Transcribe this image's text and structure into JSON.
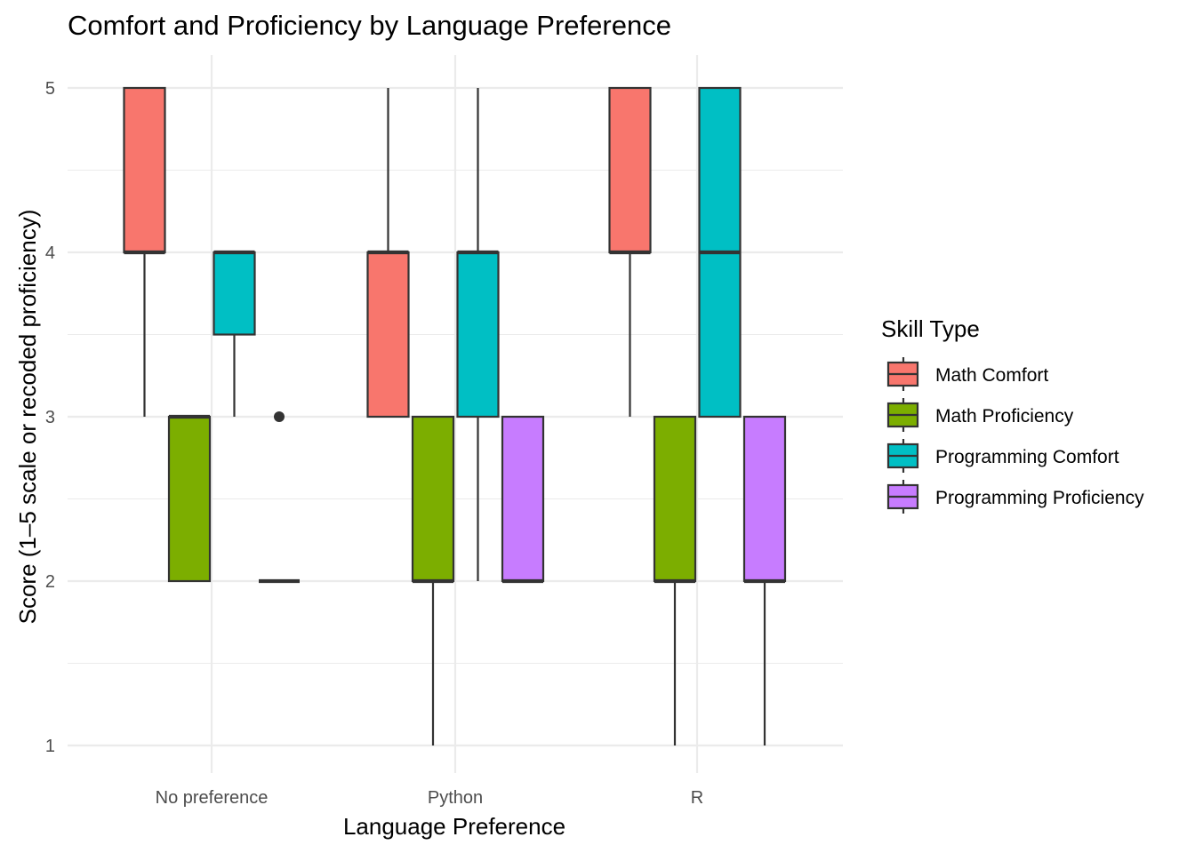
{
  "chart_data": {
    "type": "boxplot",
    "title": "Comfort and Proficiency by Language Preference",
    "xlabel": "Language Preference",
    "ylabel": "Score (1–5 scale or recoded proficiency)",
    "ylim": [
      1,
      5
    ],
    "yticks": [
      "1",
      "2",
      "3",
      "4",
      "5"
    ],
    "categories": [
      "No preference",
      "Python",
      "R"
    ],
    "legend": {
      "title": "Skill Type",
      "position": "right"
    },
    "series": [
      {
        "name": "Math Comfort",
        "color": "#F8766D",
        "boxes": [
          {
            "min": 3,
            "q1": 4,
            "median": 4,
            "q3": 5,
            "max": 5,
            "outliers": []
          },
          {
            "min": 3,
            "q1": 3,
            "median": 4,
            "q3": 4,
            "max": 5,
            "outliers": []
          },
          {
            "min": 3,
            "q1": 4,
            "median": 4,
            "q3": 5,
            "max": 5,
            "outliers": []
          }
        ]
      },
      {
        "name": "Math Proficiency",
        "color": "#7CAE00",
        "boxes": [
          {
            "min": 2,
            "q1": 2,
            "median": 3,
            "q3": 3,
            "max": 3,
            "outliers": []
          },
          {
            "min": 1,
            "q1": 2,
            "median": 2,
            "q3": 3,
            "max": 3,
            "outliers": []
          },
          {
            "min": 1,
            "q1": 2,
            "median": 2,
            "q3": 3,
            "max": 3,
            "outliers": []
          }
        ]
      },
      {
        "name": "Programming Comfort",
        "color": "#00BFC4",
        "boxes": [
          {
            "min": 3,
            "q1": 3.5,
            "median": 4,
            "q3": 4,
            "max": 4,
            "outliers": []
          },
          {
            "min": 2,
            "q1": 3,
            "median": 4,
            "q3": 4,
            "max": 5,
            "outliers": []
          },
          {
            "min": 3,
            "q1": 3,
            "median": 4,
            "q3": 5,
            "max": 5,
            "outliers": []
          }
        ]
      },
      {
        "name": "Programming Proficiency",
        "color": "#C77CFF",
        "boxes": [
          {
            "min": 2,
            "q1": 2,
            "median": 2,
            "q3": 2,
            "max": 2,
            "outliers": [
              3
            ]
          },
          {
            "min": 2,
            "q1": 2,
            "median": 2,
            "q3": 3,
            "max": 3,
            "outliers": []
          },
          {
            "min": 1,
            "q1": 2,
            "median": 2,
            "q3": 3,
            "max": 3,
            "outliers": []
          }
        ]
      }
    ]
  }
}
